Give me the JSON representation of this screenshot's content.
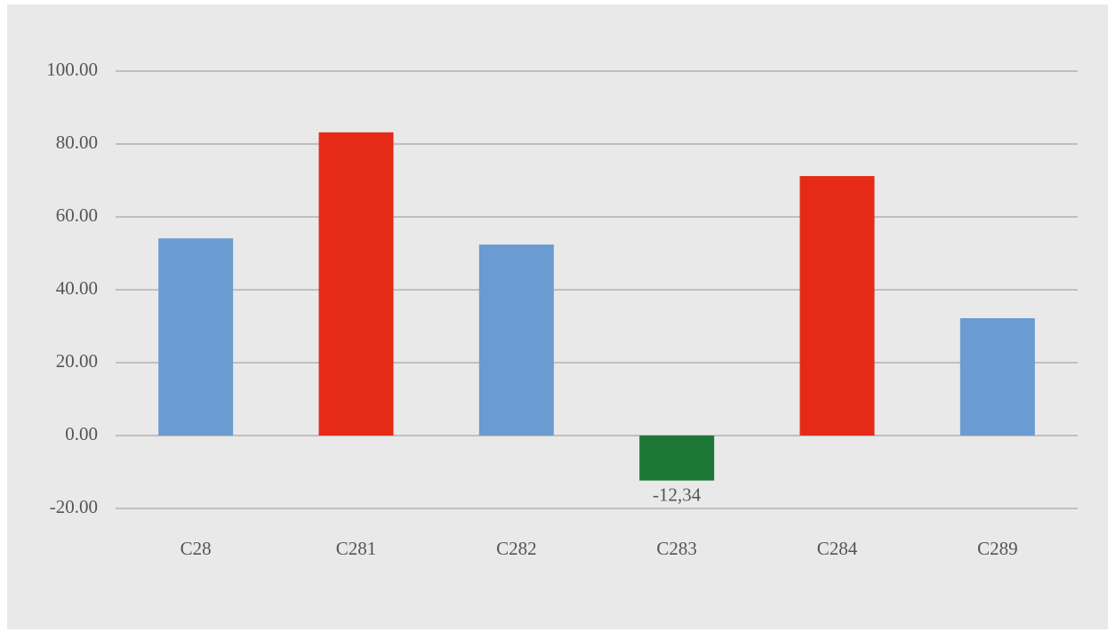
{
  "chart_data": {
    "type": "bar",
    "categories": [
      "C28",
      "C281",
      "C282",
      "C283",
      "C284",
      "C289"
    ],
    "values": [
      54.1,
      83.2,
      52.4,
      -12.34,
      71.2,
      32.2
    ],
    "value_labels": [
      null,
      null,
      null,
      "-12,34",
      null,
      null
    ],
    "colors": [
      "#6a9bd1",
      "#e52a18",
      "#6a9bd1",
      "#1d7735",
      "#e52a18",
      "#6a9bd1"
    ],
    "ylim": [
      -20,
      100
    ],
    "yticks": [
      {
        "value": -20,
        "label": "-20.00"
      },
      {
        "value": 0,
        "label": "0.00"
      },
      {
        "value": 20,
        "label": "20.00"
      },
      {
        "value": 40,
        "label": "40.00"
      },
      {
        "value": 60,
        "label": "60.00"
      },
      {
        "value": 80,
        "label": "80.00"
      },
      {
        "value": 100,
        "label": "100.00"
      }
    ],
    "grid": true
  }
}
